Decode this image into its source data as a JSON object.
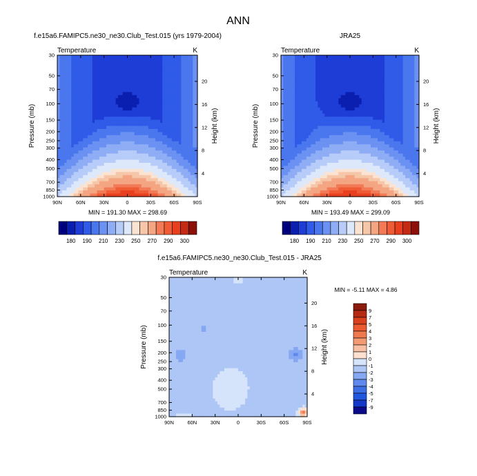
{
  "page_title": "ANN",
  "colors": {
    "temp_scale": [
      "#00007f",
      "#0a1fb0",
      "#1e3cd6",
      "#2f5be8",
      "#4a76ee",
      "#6b91f2",
      "#8eadf5",
      "#b7ccf8",
      "#dde8fb",
      "#fbe3d2",
      "#f6c6a8",
      "#f4a582",
      "#f27a56",
      "#ef5b35",
      "#e8401f",
      "#c42b14",
      "#8c0f0a"
    ],
    "diff_scale": [
      "#0a0a8a",
      "#1438c8",
      "#2457e0",
      "#3d6ee6",
      "#5f89ec",
      "#86a8f2",
      "#aec6f6",
      "#d6e4fb",
      "#fde0cf",
      "#f8bfa2",
      "#f39a73",
      "#ef7a4f",
      "#eb5a30",
      "#d9401e",
      "#b52a12",
      "#8a1a0c"
    ]
  },
  "chart_data": [
    {
      "id": "model",
      "type": "contour",
      "title": "f.e15a6.FAMIPC5.ne30_ne30.Club_Test.015 (yrs 1979-2004)",
      "subtitle_left": "Temperature",
      "subtitle_right": "K",
      "xlabel": "",
      "ylabel": "Pressure (mb)",
      "y2label": "Height (km)",
      "x_ticks": [
        "90N",
        "60N",
        "30N",
        "0",
        "30S",
        "60S",
        "90S"
      ],
      "x_values": [
        90,
        60,
        30,
        0,
        -30,
        -60,
        -90
      ],
      "y_ticks": [
        "30",
        "50",
        "70",
        "100",
        "150",
        "200",
        "250",
        "300",
        "400",
        "500",
        "700",
        "850",
        "1000"
      ],
      "y_values": [
        30,
        50,
        70,
        100,
        150,
        200,
        250,
        300,
        400,
        500,
        700,
        850,
        1000
      ],
      "y2_ticks": [
        "20",
        "16",
        "12",
        "8",
        "4"
      ],
      "y2_values": [
        20,
        16,
        12,
        8,
        4
      ],
      "ylim": [
        30,
        1000
      ],
      "stats": "MIN = 191.30  MAX = 298.69",
      "min": 191.3,
      "max": 298.69,
      "colorbar_labels": [
        "180",
        "190",
        "210",
        "230",
        "250",
        "270",
        "290",
        "300"
      ]
    },
    {
      "id": "obs",
      "type": "contour",
      "title": "JRA25",
      "subtitle_left": "Temperature",
      "subtitle_right": "K",
      "xlabel": "",
      "ylabel": "Pressure (mb)",
      "y2label": "Height (km)",
      "x_ticks": [
        "90N",
        "60N",
        "30N",
        "0",
        "30S",
        "60S",
        "90S"
      ],
      "x_values": [
        90,
        60,
        30,
        0,
        -30,
        -60,
        -90
      ],
      "y_ticks": [
        "30",
        "50",
        "70",
        "100",
        "150",
        "200",
        "250",
        "300",
        "400",
        "500",
        "700",
        "850",
        "1000"
      ],
      "y_values": [
        30,
        50,
        70,
        100,
        150,
        200,
        250,
        300,
        400,
        500,
        700,
        850,
        1000
      ],
      "y2_ticks": [
        "20",
        "16",
        "12",
        "8",
        "4"
      ],
      "y2_values": [
        20,
        16,
        12,
        8,
        4
      ],
      "ylim": [
        30,
        1000
      ],
      "stats": "MIN = 193.49  MAX = 299.09",
      "min": 193.49,
      "max": 299.09,
      "colorbar_labels": [
        "180",
        "190",
        "210",
        "230",
        "250",
        "270",
        "290",
        "300"
      ]
    },
    {
      "id": "diff",
      "type": "contour",
      "title": "f.e15a6.FAMIPC5.ne30_ne30.Club_Test.015 - JRA25",
      "subtitle_left": "Temperature",
      "subtitle_right": "K",
      "xlabel": "",
      "ylabel": "Pressure (mb)",
      "y2label": "Height (km)",
      "x_ticks": [
        "90N",
        "60N",
        "30N",
        "0",
        "30S",
        "60S",
        "90S"
      ],
      "x_values": [
        90,
        60,
        30,
        0,
        -30,
        -60,
        -90
      ],
      "y_ticks": [
        "30",
        "50",
        "70",
        "100",
        "150",
        "200",
        "250",
        "300",
        "400",
        "500",
        "700",
        "850",
        "1000"
      ],
      "y_values": [
        30,
        50,
        70,
        100,
        150,
        200,
        250,
        300,
        400,
        500,
        700,
        850,
        1000
      ],
      "y2_ticks": [
        "20",
        "16",
        "12",
        "8",
        "4"
      ],
      "y2_values": [
        20,
        16,
        12,
        8,
        4
      ],
      "ylim": [
        30,
        1000
      ],
      "stats": "MIN = -5.11  MAX =  4.86",
      "min": -5.11,
      "max": 4.86,
      "colorbar_labels": [
        "9",
        "7",
        "5",
        "4",
        "3",
        "2",
        "1",
        "0",
        "-1",
        "-2",
        "-3",
        "-4",
        "-5",
        "-7",
        "-9"
      ]
    }
  ]
}
